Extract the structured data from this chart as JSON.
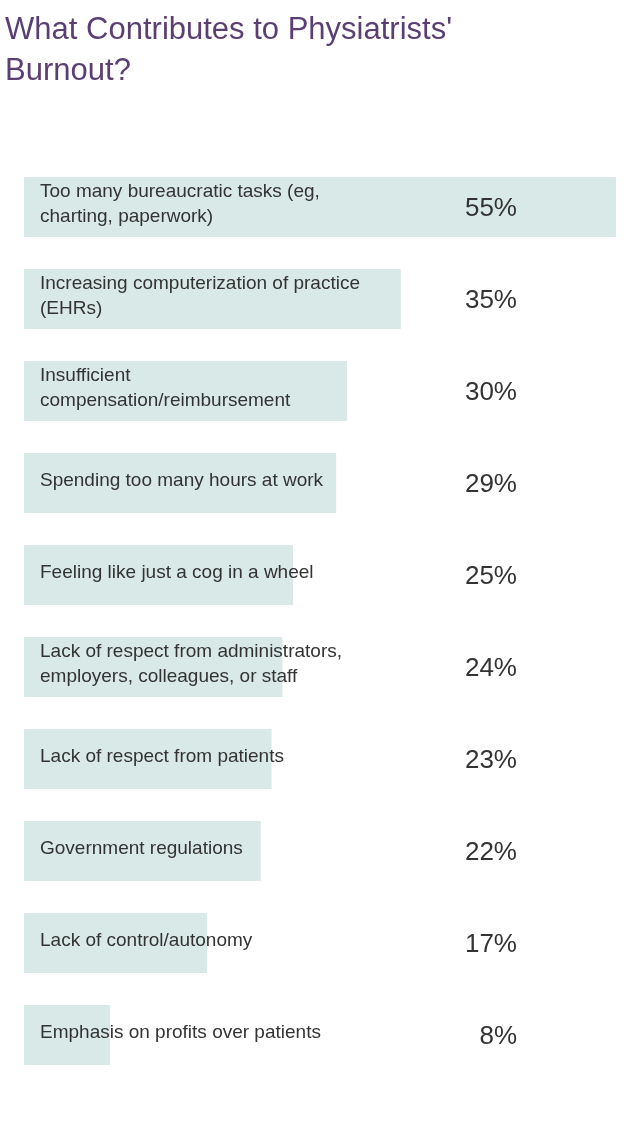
{
  "chart_data": {
    "type": "bar",
    "orientation": "horizontal",
    "title": "What Contributes to Physiatrists'\nBurnout?",
    "categories": [
      "Too many bureaucratic tasks (eg,\ncharting, paperwork)",
      "Increasing computerization of practice\n(EHRs)",
      "Insufficient\ncompensation/reimbursement",
      "Spending too many hours at work",
      "Feeling like just a cog in a wheel",
      "Lack of respect from administrators,\nemployers, colleagues, or staff",
      "Lack of respect from patients",
      "Government regulations",
      "Lack of control/autonomy",
      "Emphasis on profits over patients"
    ],
    "values": [
      55,
      35,
      30,
      29,
      25,
      24,
      23,
      22,
      17,
      8
    ],
    "value_labels": [
      "55%",
      "35%",
      "30%",
      "29%",
      "25%",
      "24%",
      "23%",
      "22%",
      "17%",
      "8%"
    ],
    "color": "#d9e9e7",
    "legend": false
  }
}
